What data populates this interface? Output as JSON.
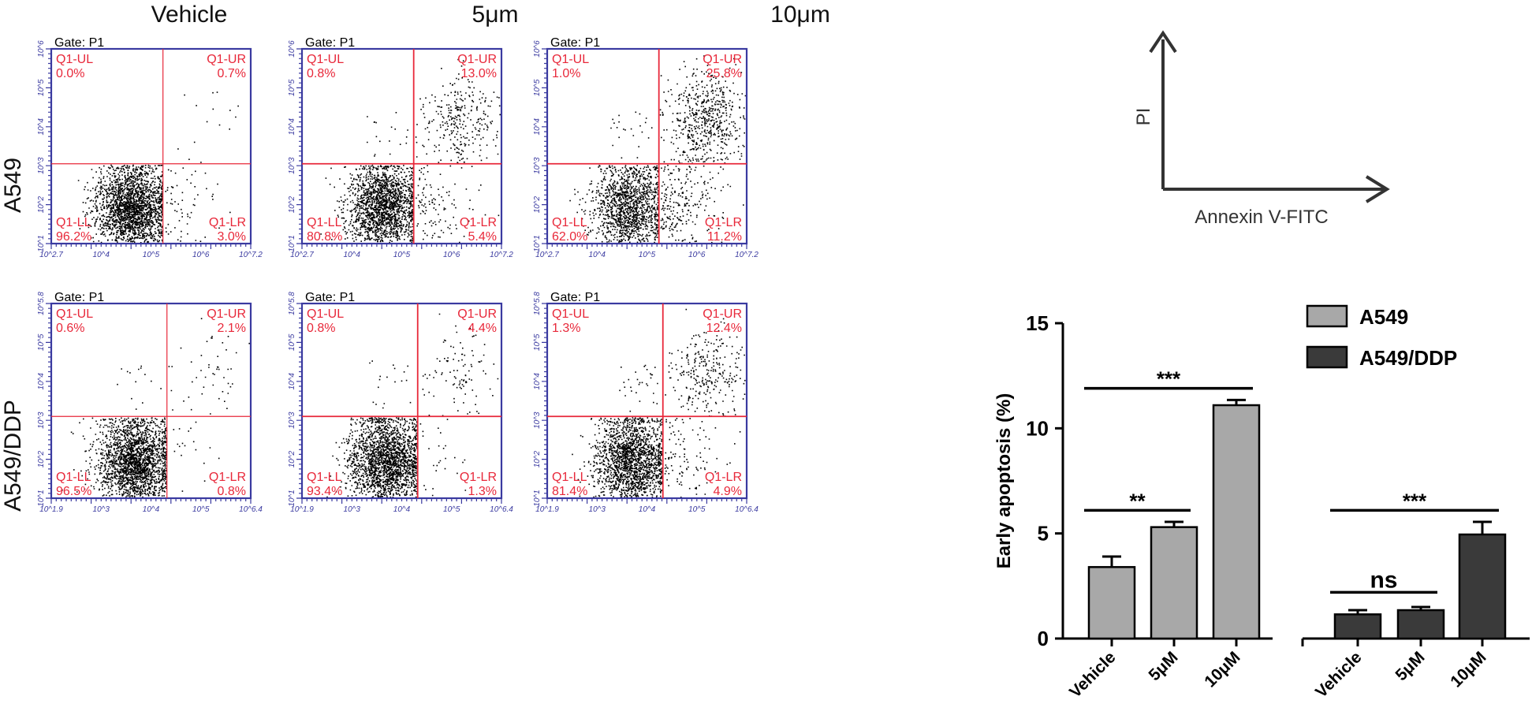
{
  "columns": [
    "Vehicle",
    "5μm",
    "10μm"
  ],
  "rows": [
    "A549",
    "A549/DDP"
  ],
  "gate_label": "Gate: P1",
  "quadrant_names": {
    "ul": "Q1-UL",
    "ur": "Q1-UR",
    "ll": "Q1-LL",
    "lr": "Q1-LR"
  },
  "flow_plots": [
    {
      "row": 0,
      "col": 0,
      "ul": "0.0%",
      "ur": "0.7%",
      "ll": "96.2%",
      "lr": "3.0%",
      "x_ticks": [
        "10^2.7",
        "10^4",
        "10^5",
        "10^6",
        "10^7.2"
      ],
      "y_ticks": [
        "10^1",
        "10^2",
        "10^3",
        "10^4",
        "10^5",
        "10^6"
      ]
    },
    {
      "row": 0,
      "col": 1,
      "ul": "0.8%",
      "ur": "13.0%",
      "ll": "80.8%",
      "lr": "5.4%",
      "x_ticks": [
        "10^2.7",
        "10^4",
        "10^5",
        "10^6",
        "10^7.2"
      ],
      "y_ticks": [
        "10^1",
        "10^2",
        "10^3",
        "10^4",
        "10^5",
        "10^6"
      ]
    },
    {
      "row": 0,
      "col": 2,
      "ul": "1.0%",
      "ur": "25.8%",
      "ll": "62.0%",
      "lr": "11.2%",
      "x_ticks": [
        "10^2.7",
        "10^4",
        "10^5",
        "10^6",
        "10^7.2"
      ],
      "y_ticks": [
        "10^1",
        "10^2",
        "10^3",
        "10^4",
        "10^5",
        "10^6"
      ]
    },
    {
      "row": 1,
      "col": 0,
      "ul": "0.6%",
      "ur": "2.1%",
      "ll": "96.5%",
      "lr": "0.8%",
      "x_ticks": [
        "10^1.9",
        "10^3",
        "10^4",
        "10^5",
        "10^6.4"
      ],
      "y_ticks": [
        "10^1",
        "10^2",
        "10^3",
        "10^4",
        "10^5",
        "10^5.8"
      ]
    },
    {
      "row": 1,
      "col": 1,
      "ul": "0.8%",
      "ur": "4.4%",
      "ll": "93.4%",
      "lr": "1.3%",
      "x_ticks": [
        "10^1.9",
        "10^3",
        "10^4",
        "10^5",
        "10^6.4"
      ],
      "y_ticks": [
        "10^1",
        "10^2",
        "10^3",
        "10^4",
        "10^5",
        "10^5.8"
      ]
    },
    {
      "row": 1,
      "col": 2,
      "ul": "1.3%",
      "ur": "12.4%",
      "ll": "81.4%",
      "lr": "4.9%",
      "x_ticks": [
        "10^1.9",
        "10^3",
        "10^4",
        "10^5",
        "10^6.4"
      ],
      "y_ticks": [
        "10^1",
        "10^2",
        "10^3",
        "10^4",
        "10^5",
        "10^5.8"
      ]
    }
  ],
  "axes_legend": {
    "y": "PI",
    "x": "Annexin V-FITC"
  },
  "colors": {
    "quadrant_line": "#e8283a",
    "frame": "#3a3aa0",
    "bar_a549": "#a8a8a8",
    "bar_ddp": "#3a3a3a"
  },
  "chart_data": {
    "type": "bar",
    "ylabel": "Early apoptosis (%)",
    "ylim": [
      0,
      15
    ],
    "yticks": [
      0,
      5,
      10,
      15
    ],
    "groups": [
      {
        "name": "A549",
        "categories": [
          "Vehicle",
          "5μM",
          "10μM"
        ],
        "values": [
          3.4,
          5.3,
          11.1
        ],
        "errors": [
          0.5,
          0.25,
          0.25
        ]
      },
      {
        "name": "A549/DDP",
        "categories": [
          "Vehicle",
          "5μM",
          "10μM"
        ],
        "values": [
          1.15,
          1.35,
          4.95
        ],
        "errors": [
          0.2,
          0.15,
          0.6
        ]
      }
    ],
    "legend": [
      "A549",
      "A549/DDP"
    ],
    "legend_position": "top-right",
    "significance": [
      {
        "group": "A549",
        "from": "Vehicle",
        "to": "10μM",
        "label": "***",
        "y": 11.9
      },
      {
        "group": "A549",
        "from": "Vehicle",
        "to": "5μM",
        "label": "**",
        "y": 6.1
      },
      {
        "group": "A549/DDP",
        "from": "Vehicle",
        "to": "10μM",
        "label": "***",
        "y": 6.1
      },
      {
        "group": "A549/DDP",
        "from": "Vehicle",
        "to": "5μM",
        "label": "ns",
        "y": 2.2
      }
    ]
  }
}
